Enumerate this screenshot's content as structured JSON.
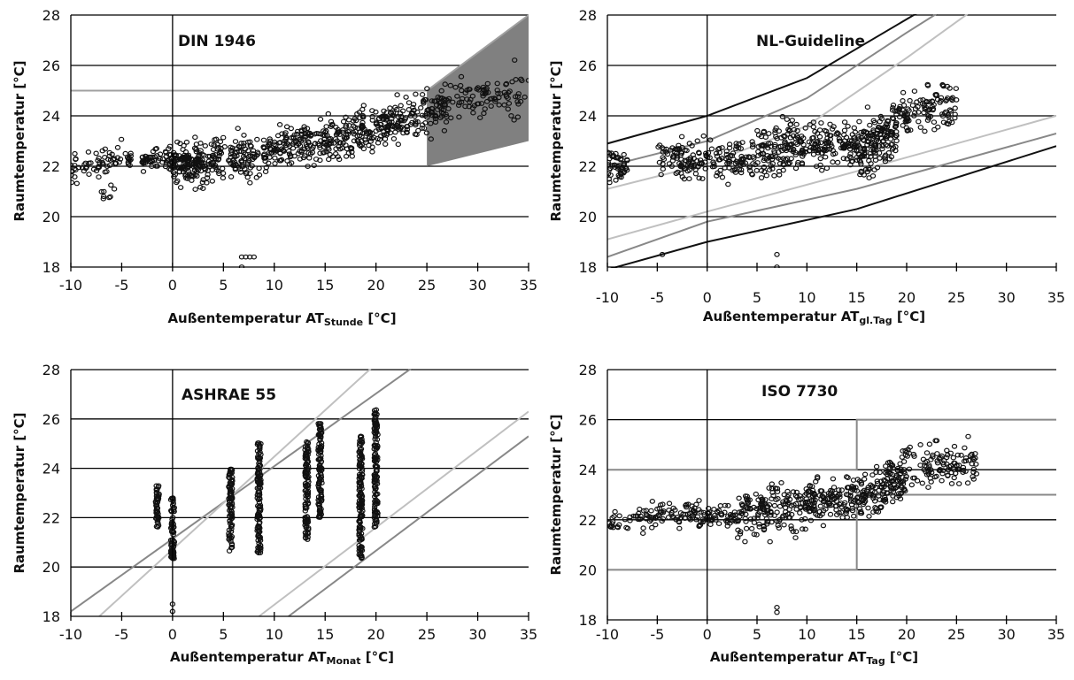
{
  "chart_data": [
    {
      "type": "scatter",
      "title": "DIN 1946",
      "xlabel": {
        "main": "Außentemperatur AT",
        "sub": "Stunde",
        "unit": " [°C]"
      },
      "ylabel": "Raumtemperatur [°C]",
      "xlim": [
        -10,
        35
      ],
      "ylim": [
        18,
        28
      ],
      "xticks": [
        -10,
        -5,
        0,
        5,
        10,
        15,
        20,
        25,
        30,
        35
      ],
      "yticks": [
        18,
        20,
        22,
        24,
        26,
        28
      ],
      "grid": "horizontal",
      "colors": {
        "band": "#808080",
        "upper": "#a0a0a0",
        "points": "#111111"
      },
      "lines": [
        {
          "color": "#a0a0a0",
          "points": [
            [
              -10,
              25
            ],
            [
              25,
              25
            ],
            [
              35,
              28
            ]
          ]
        }
      ],
      "band": {
        "color": "#808080",
        "upper": [
          [
            25,
            25
          ],
          [
            35,
            28
          ]
        ],
        "lower": [
          [
            25,
            22
          ],
          [
            35,
            23
          ]
        ],
        "flat_lower": [
          [
            10,
            22
          ],
          [
            25,
            22
          ]
        ]
      },
      "point_clusters": [
        {
          "x": [
            -10,
            -4
          ],
          "y_center": [
            21.9,
            22.4
          ],
          "spread": 0.5,
          "count": 70
        },
        {
          "x": [
            -8,
            -5.5
          ],
          "y_center": [
            21.0,
            20.8
          ],
          "spread": 0.4,
          "count": 8
        },
        {
          "x": [
            -3,
            3
          ],
          "y_center": [
            22.3,
            22.2
          ],
          "spread": 0.45,
          "count": 120
        },
        {
          "x": [
            0,
            10
          ],
          "y_center": [
            22.0,
            22.6
          ],
          "spread": 0.9,
          "count": 240
        },
        {
          "x": [
            10,
            20
          ],
          "y_center": [
            22.7,
            23.4
          ],
          "spread": 0.85,
          "count": 260
        },
        {
          "x": [
            20,
            27
          ],
          "y_center": [
            23.5,
            24.4
          ],
          "spread": 0.8,
          "count": 180
        },
        {
          "x": [
            27,
            35
          ],
          "y_center": [
            24.5,
            25.0
          ],
          "spread": 0.9,
          "count": 90
        }
      ],
      "outliers": [
        [
          6.8,
          18.4
        ],
        [
          7.2,
          18.4
        ],
        [
          7.6,
          18.4
        ],
        [
          8.0,
          18.4
        ],
        [
          6.8,
          18.0
        ]
      ]
    },
    {
      "type": "scatter",
      "title": "NL-Guideline",
      "xlabel": {
        "main": "Außentemperatur AT",
        "sub": "gl.Tag",
        "unit": " [°C]"
      },
      "ylabel": "Raumtemperatur [°C]",
      "xlim": [
        -10,
        35
      ],
      "ylim": [
        18,
        28
      ],
      "xticks": [
        -10,
        -5,
        0,
        5,
        10,
        15,
        20,
        25,
        30,
        35
      ],
      "yticks": [
        18,
        20,
        22,
        24,
        26,
        28
      ],
      "grid": "horizontal",
      "colors": {
        "outer": "#111111",
        "middle": "#888888",
        "inner": "#c0c0c0"
      },
      "lines": [
        {
          "color": "#111111",
          "points": [
            [
              -10,
              22.9
            ],
            [
              0,
              24
            ],
            [
              10,
              25.5
            ],
            [
              22,
              28.3
            ]
          ]
        },
        {
          "color": "#888888",
          "points": [
            [
              -10,
              22
            ],
            [
              0,
              23
            ],
            [
              10,
              24.7
            ],
            [
              20,
              27.3
            ],
            [
              24,
              28.3
            ]
          ]
        },
        {
          "color": "#c0c0c0",
          "points": [
            [
              -10,
              21.1
            ],
            [
              0,
              22.1
            ],
            [
              10,
              23.6
            ],
            [
              20,
              26.3
            ],
            [
              27,
              28.3
            ]
          ]
        },
        {
          "color": "#c0c0c0",
          "points": [
            [
              -10,
              19.1
            ],
            [
              0,
              20.2
            ],
            [
              15,
              21.8
            ],
            [
              35,
              24
            ]
          ]
        },
        {
          "color": "#888888",
          "points": [
            [
              -10,
              18.4
            ],
            [
              0,
              19.8
            ],
            [
              15,
              21.1
            ],
            [
              35,
              23.3
            ]
          ]
        },
        {
          "color": "#111111",
          "points": [
            [
              -10,
              17.9
            ],
            [
              0,
              19.0
            ],
            [
              15,
              20.3
            ],
            [
              35,
              22.8
            ]
          ]
        }
      ],
      "point_clusters": [
        {
          "x": [
            -10,
            -8
          ],
          "y_center": [
            22.0,
            22.0
          ],
          "spread": 0.6,
          "count": 50
        },
        {
          "x": [
            -5,
            5
          ],
          "y_center": [
            22.3,
            22.2
          ],
          "spread": 0.8,
          "count": 180
        },
        {
          "x": [
            5,
            10
          ],
          "y_center": [
            22.5,
            22.8
          ],
          "spread": 1.0,
          "count": 140
        },
        {
          "x": [
            10,
            15
          ],
          "y_center": [
            23.0,
            22.8
          ],
          "spread": 0.8,
          "count": 120
        },
        {
          "x": [
            15,
            19
          ],
          "y_center": [
            22.5,
            23.5
          ],
          "spread": 1.1,
          "count": 170
        },
        {
          "x": [
            19,
            25
          ],
          "y_center": [
            24.0,
            24.5
          ],
          "spread": 0.8,
          "count": 110
        }
      ],
      "outliers": [
        [
          7,
          18.5
        ],
        [
          7,
          18.0
        ],
        [
          -4.5,
          18.5
        ]
      ]
    },
    {
      "type": "scatter",
      "title": "ASHRAE 55",
      "xlabel": {
        "main": "Außentemperatur AT",
        "sub": "Monat",
        "unit": " [°C]"
      },
      "ylabel": "Raumtemperatur [°C]",
      "xlim": [
        -10,
        35
      ],
      "ylim": [
        18,
        28
      ],
      "xticks": [
        -10,
        -5,
        0,
        5,
        10,
        15,
        20,
        25,
        30,
        35
      ],
      "yticks": [
        18,
        20,
        22,
        24,
        26,
        28
      ],
      "grid": "horizontal",
      "colors": {
        "outer": "#888888",
        "inner": "#c0c0c0"
      },
      "lines": [
        {
          "color": "#888888",
          "points": [
            [
              -10,
              18.2
            ],
            [
              25,
              28.5
            ]
          ]
        },
        {
          "color": "#c0c0c0",
          "points": [
            [
              -7.2,
              18
            ],
            [
              20.7,
              28.5
            ]
          ]
        },
        {
          "color": "#c0c0c0",
          "points": [
            [
              8.5,
              18
            ],
            [
              35,
              26.3
            ]
          ]
        },
        {
          "color": "#888888",
          "points": [
            [
              11.4,
              18
            ],
            [
              35,
              25.3
            ]
          ]
        }
      ],
      "columns": [
        {
          "x": -1.5,
          "ymin": 21.5,
          "ymax": 23.3
        },
        {
          "x": 0,
          "ymin": 20.3,
          "ymax": 22.8
        },
        {
          "x": 5.7,
          "ymin": 20.6,
          "ymax": 24.0
        },
        {
          "x": 8.5,
          "ymin": 20.5,
          "ymax": 25.1
        },
        {
          "x": 13.2,
          "ymin": 21.1,
          "ymax": 25.1
        },
        {
          "x": 14.5,
          "ymin": 22.0,
          "ymax": 25.9
        },
        {
          "x": 18.5,
          "ymin": 20.3,
          "ymax": 25.3
        },
        {
          "x": 20,
          "ymin": 21.6,
          "ymax": 26.4
        }
      ],
      "outliers": [
        [
          0,
          18.5
        ],
        [
          0,
          18.2
        ]
      ]
    },
    {
      "type": "scatter",
      "title": "ISO 7730",
      "xlabel": {
        "main": "Außentemperatur AT",
        "sub": "Tag",
        "unit": " [°C]"
      },
      "ylabel": "Raumtemperatur [°C]",
      "xlim": [
        -10,
        35
      ],
      "ylim": [
        18,
        28
      ],
      "xticks": [
        -10,
        -5,
        0,
        5,
        10,
        15,
        20,
        25,
        30,
        35
      ],
      "yticks": [
        18,
        20,
        22,
        24,
        26,
        28
      ],
      "grid": "horizontal",
      "colors": {
        "limits": "#888888"
      },
      "lines": [
        {
          "color": "#888888",
          "points": [
            [
              -10,
              24
            ],
            [
              15,
              24
            ],
            [
              15,
              26
            ],
            [
              35,
              26
            ]
          ]
        },
        {
          "color": "#888888",
          "points": [
            [
              -10,
              20
            ],
            [
              15,
              20
            ],
            [
              15,
              23
            ],
            [
              35,
              23
            ]
          ]
        }
      ],
      "point_clusters": [
        {
          "x": [
            -10,
            -5
          ],
          "y_center": [
            21.8,
            22.1
          ],
          "spread": 0.5,
          "count": 50
        },
        {
          "x": [
            -5,
            3
          ],
          "y_center": [
            22.2,
            22.2
          ],
          "spread": 0.45,
          "count": 110
        },
        {
          "x": [
            3,
            10
          ],
          "y_center": [
            22.2,
            22.6
          ],
          "spread": 0.9,
          "count": 170
        },
        {
          "x": [
            10,
            15
          ],
          "y_center": [
            22.7,
            22.8
          ],
          "spread": 0.8,
          "count": 130
        },
        {
          "x": [
            15,
            20
          ],
          "y_center": [
            22.8,
            23.8
          ],
          "spread": 0.9,
          "count": 160
        },
        {
          "x": [
            20,
            27
          ],
          "y_center": [
            24.2,
            24.2
          ],
          "spread": 0.8,
          "count": 110
        }
      ],
      "outliers": [
        [
          7,
          18.5
        ],
        [
          7,
          18.3
        ]
      ]
    }
  ]
}
